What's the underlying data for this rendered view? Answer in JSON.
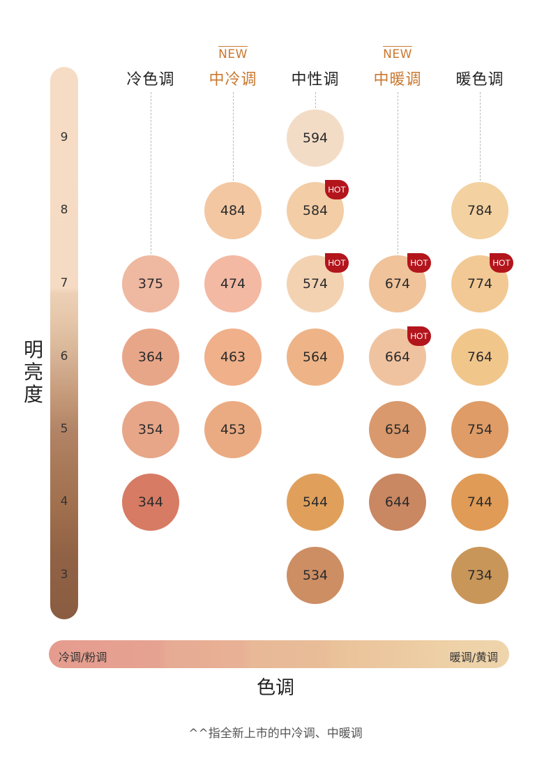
{
  "brightness_axis": {
    "title": "明亮度",
    "levels": [
      "9",
      "8",
      "7",
      "6",
      "5",
      "4",
      "3"
    ]
  },
  "columns": [
    {
      "name": "冷色调",
      "new": false,
      "tag": ""
    },
    {
      "name": "中冷调",
      "new": true,
      "tag": "NEW"
    },
    {
      "name": "中性调",
      "new": false,
      "tag": ""
    },
    {
      "name": "中暖调",
      "new": true,
      "tag": "NEW"
    },
    {
      "name": "暖色调",
      "new": false,
      "tag": ""
    }
  ],
  "shades": [
    {
      "code": "594",
      "col": 2,
      "level": "9",
      "color": "#f3dcc6",
      "hot": false
    },
    {
      "code": "484",
      "col": 1,
      "level": "8",
      "color": "#f3c7a2",
      "hot": false
    },
    {
      "code": "584",
      "col": 2,
      "level": "8",
      "color": "#f3cda6",
      "hot": true
    },
    {
      "code": "784",
      "col": 4,
      "level": "8",
      "color": "#f3d1a0",
      "hot": false
    },
    {
      "code": "375",
      "col": 0,
      "level": "7",
      "color": "#efb8a0",
      "hot": false
    },
    {
      "code": "474",
      "col": 1,
      "level": "7",
      "color": "#f3b9a3",
      "hot": false
    },
    {
      "code": "574",
      "col": 2,
      "level": "7",
      "color": "#f3d2b2",
      "hot": true
    },
    {
      "code": "674",
      "col": 3,
      "level": "7",
      "color": "#f0c39a",
      "hot": true
    },
    {
      "code": "774",
      "col": 4,
      "level": "7",
      "color": "#f2c994",
      "hot": true
    },
    {
      "code": "364",
      "col": 0,
      "level": "6",
      "color": "#e8a689",
      "hot": false
    },
    {
      "code": "463",
      "col": 1,
      "level": "6",
      "color": "#efb08a",
      "hot": false
    },
    {
      "code": "564",
      "col": 2,
      "level": "6",
      "color": "#eeb487",
      "hot": false
    },
    {
      "code": "664",
      "col": 3,
      "level": "6",
      "color": "#f0c3a0",
      "hot": true
    },
    {
      "code": "764",
      "col": 4,
      "level": "6",
      "color": "#f1c68b",
      "hot": false
    },
    {
      "code": "354",
      "col": 0,
      "level": "5",
      "color": "#e7a688",
      "hot": false
    },
    {
      "code": "453",
      "col": 1,
      "level": "5",
      "color": "#ebab82",
      "hot": false
    },
    {
      "code": "654",
      "col": 3,
      "level": "5",
      "color": "#d9996c",
      "hot": false
    },
    {
      "code": "754",
      "col": 4,
      "level": "5",
      "color": "#df9c66",
      "hot": false
    },
    {
      "code": "344",
      "col": 0,
      "level": "4",
      "color": "#d77b64",
      "hot": false
    },
    {
      "code": "544",
      "col": 2,
      "level": "4",
      "color": "#e0a05c",
      "hot": false
    },
    {
      "code": "644",
      "col": 3,
      "level": "4",
      "color": "#c98762",
      "hot": false
    },
    {
      "code": "744",
      "col": 4,
      "level": "4",
      "color": "#e09b56",
      "hot": false
    },
    {
      "code": "534",
      "col": 2,
      "level": "3",
      "color": "#cd8e64",
      "hot": false
    },
    {
      "code": "734",
      "col": 4,
      "level": "3",
      "color": "#c99659",
      "hot": false
    }
  ],
  "hot_label": "HOT",
  "tone_axis": {
    "title": "色调",
    "left_label": "冷调/粉调",
    "right_label": "暖调/黄调"
  },
  "footnote": "^^指全新上市的中冷调、中暖调"
}
